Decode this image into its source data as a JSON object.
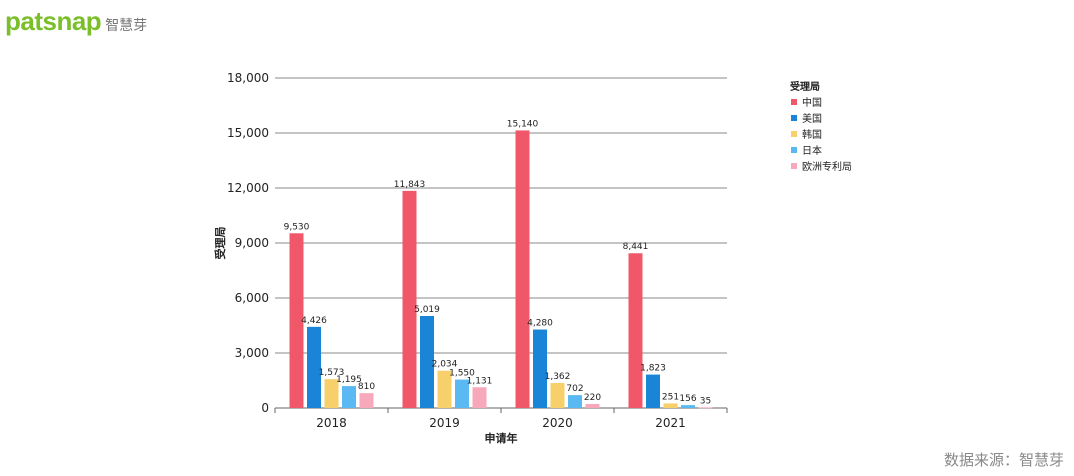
{
  "brand": {
    "name": "patsnap",
    "cn": "智慧芽"
  },
  "source": "数据来源：智慧芽",
  "chart_data": {
    "type": "bar",
    "categories": [
      "2018",
      "2019",
      "2020",
      "2021"
    ],
    "series": [
      {
        "name": "中国",
        "values": [
          9530,
          11843,
          15140,
          8441
        ],
        "color": "#f0586a"
      },
      {
        "name": "美国",
        "values": [
          4426,
          5019,
          4280,
          1823
        ],
        "color": "#1a84d6"
      },
      {
        "name": "韩国",
        "values": [
          1573,
          2034,
          1362,
          251
        ],
        "color": "#f7cf6b"
      },
      {
        "name": "日本",
        "values": [
          1195,
          1550,
          702,
          156
        ],
        "color": "#5ab8f2"
      },
      {
        "name": "欧洲专利局",
        "values": [
          810,
          1131,
          220,
          35
        ],
        "color": "#f7a8bb"
      }
    ],
    "xlabel": "申请年",
    "ylabel": "受理局",
    "legend_title": "受理局",
    "ylim": [
      0,
      18000
    ],
    "yticks": [
      0,
      3000,
      6000,
      9000,
      12000,
      15000,
      18000
    ],
    "ytick_labels": [
      "0",
      "3,000",
      "6,000",
      "9,000",
      "12,000",
      "15,000",
      "18,000"
    ],
    "value_labels": [
      [
        "9,530",
        "11,843",
        "15,140",
        "8,441"
      ],
      [
        "4,426",
        "5,019",
        "4,280",
        "1,823"
      ],
      [
        "1,573",
        "2,034",
        "1,362",
        "251"
      ],
      [
        "1,195",
        "1,550",
        "702",
        "156"
      ],
      [
        "810",
        "1,131",
        "220",
        "35"
      ]
    ],
    "grid": true,
    "legend_position": "right"
  }
}
